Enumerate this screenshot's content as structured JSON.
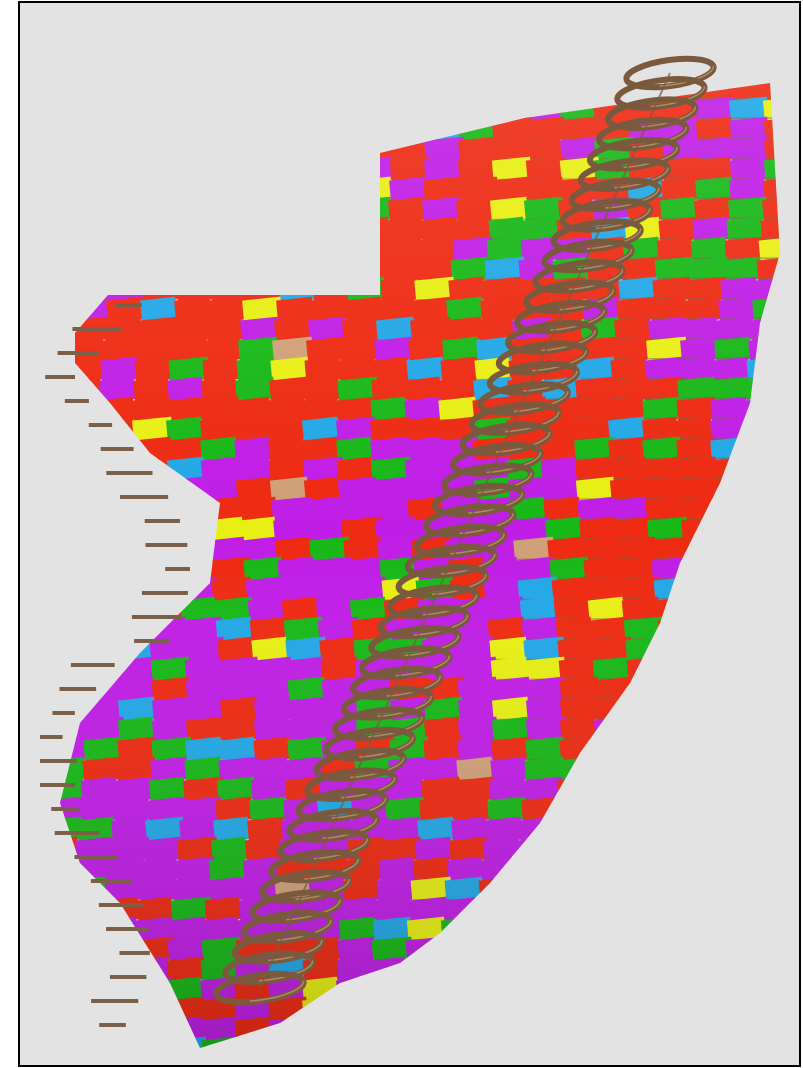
{
  "image": {
    "subject": "3d-layered-fabric-sheets-with-helical-coil",
    "colors": {
      "background": "#e3e3e3",
      "border": "#000000",
      "red": "#ee2a12",
      "magenta": "#c01ee6",
      "green": "#18b818",
      "yellow": "#e8ef14",
      "cyan": "#22a8e6",
      "tan": "#d0a078",
      "coil": "#7a5a3e",
      "sheet_edge": "#7a6048"
    }
  }
}
